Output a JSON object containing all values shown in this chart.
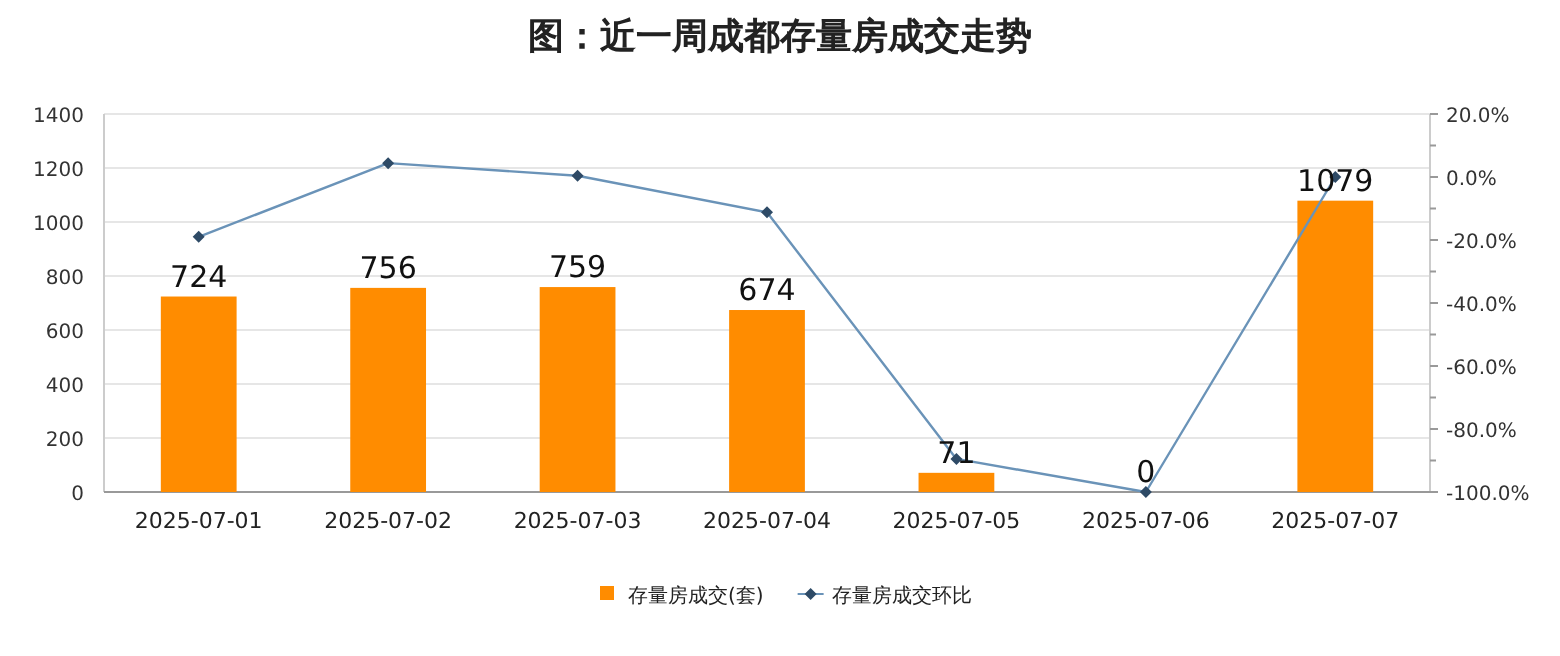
{
  "chart_data": {
    "type": "bar",
    "title": "图：近一周成都存量房成交走势",
    "categories": [
      "2025-07-01",
      "2025-07-02",
      "2025-07-03",
      "2025-07-04",
      "2025-07-05",
      "2025-07-06",
      "2025-07-07"
    ],
    "series": [
      {
        "name": "存量房成交(套)",
        "color": "#ff8c00",
        "values": [
          724,
          756,
          759,
          674,
          71,
          0,
          1079
        ],
        "value_labels": [
          "724",
          "756",
          "759",
          "674",
          "71",
          "0",
          "1079"
        ]
      },
      {
        "name": "存量房成交环比",
        "type": "line",
        "axis": "y2",
        "color": "#6a93b8",
        "marker": "diamond",
        "values": [
          -19,
          4.4,
          0.4,
          -11.2,
          -89.5,
          -100,
          0
        ]
      }
    ],
    "ylim": [
      0,
      1400
    ],
    "yticks": [
      0,
      200,
      400,
      600,
      800,
      1000,
      1200,
      1400
    ],
    "y2lim": [
      -100,
      20
    ],
    "y2ticks": [
      {
        "value": -100,
        "label": "-100.0%"
      },
      {
        "value": -80,
        "label": "-80.0%"
      },
      {
        "value": -60,
        "label": "-60.0%"
      },
      {
        "value": -40,
        "label": "-40.0%"
      },
      {
        "value": -20,
        "label": "-20.0%"
      },
      {
        "value": 0,
        "label": "0.0%"
      },
      {
        "value": 20,
        "label": "20.0%"
      }
    ],
    "grid": "y",
    "legend": "bottom"
  }
}
